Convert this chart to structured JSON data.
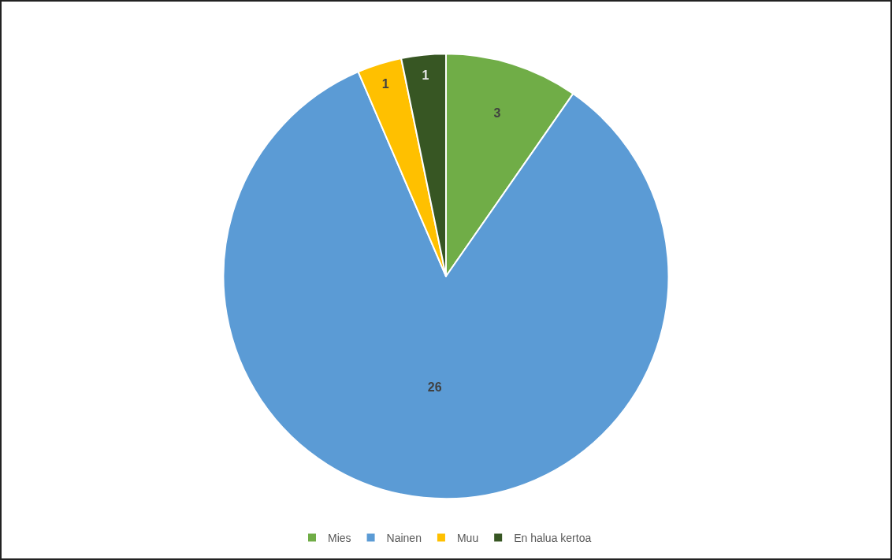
{
  "chart_data": {
    "type": "pie",
    "categories": [
      "Mies",
      "Nainen",
      "Muu",
      "En halua kertoa"
    ],
    "values": [
      3,
      26,
      1,
      1
    ],
    "colors": [
      "#70ad47",
      "#5b9bd5",
      "#ffc000",
      "#375623"
    ],
    "data_labels": true,
    "legend": "bottom"
  }
}
